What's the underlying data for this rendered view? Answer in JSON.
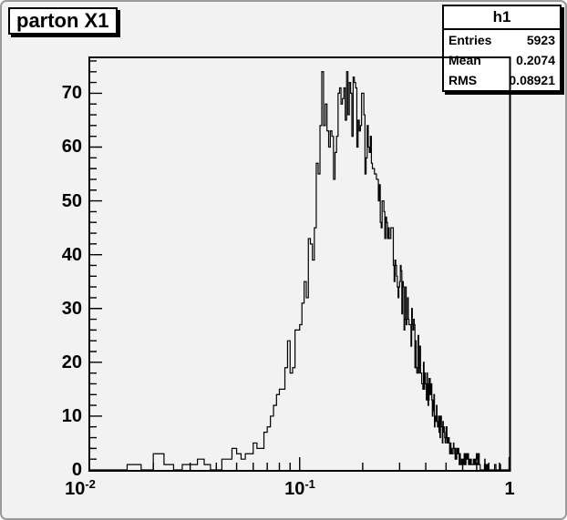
{
  "title_box": {
    "title": "parton X1"
  },
  "stats_box": {
    "header": "h1",
    "rows": [
      {
        "label": "Entries",
        "value": "5923"
      },
      {
        "label": "Mean",
        "value": "0.2074"
      },
      {
        "label": "RMS",
        "value": "0.08921"
      }
    ]
  },
  "colors": {
    "canvas_bg": "#f2f2f2",
    "frame_line": "#000000",
    "hist_line": "#000000",
    "box_bg": "#ffffff",
    "shadow": "#000000"
  },
  "chart_data": {
    "type": "histogram",
    "title": "parton X1",
    "hist_name": "h1",
    "entries": 5923,
    "mean": 0.2074,
    "rms": 0.08921,
    "x_axis": {
      "scale": "log",
      "min": 0.01,
      "max": 1,
      "major_ticks": [
        0.1,
        1
      ],
      "major_labels": [
        "10^-1",
        "1"
      ],
      "edge_label": "10^-2",
      "minor_tick_decades": [
        0.01,
        0.1
      ]
    },
    "y_axis": {
      "min": 0,
      "max": 76.5,
      "major_ticks": [
        0,
        10,
        20,
        30,
        40,
        50,
        60,
        70
      ],
      "minor_step": 2
    },
    "bins": {
      "nbins": 400,
      "xmin": 0,
      "xmax": 1
    },
    "envelope": [
      [
        0.01,
        0
      ],
      [
        0.015,
        0
      ],
      [
        0.0157,
        1
      ],
      [
        0.017,
        1
      ],
      [
        0.0176,
        0
      ],
      [
        0.0199,
        0
      ],
      [
        0.0206,
        3
      ],
      [
        0.0219,
        3
      ],
      [
        0.0226,
        2
      ],
      [
        0.0247,
        2
      ],
      [
        0.0253,
        0
      ],
      [
        0.0277,
        0
      ],
      [
        0.0283,
        1
      ],
      [
        0.0334,
        1
      ],
      [
        0.0341,
        2
      ],
      [
        0.0371,
        2
      ],
      [
        0.0378,
        1
      ],
      [
        0.0411,
        1
      ],
      [
        0.0419,
        2
      ],
      [
        0.0469,
        2
      ],
      [
        0.0478,
        3
      ],
      [
        0.0521,
        3
      ],
      [
        0.0531,
        2
      ],
      [
        0.0575,
        3
      ],
      [
        0.064,
        4
      ],
      [
        0.069,
        6
      ],
      [
        0.071,
        8
      ],
      [
        0.075,
        11
      ],
      [
        0.078,
        14
      ],
      [
        0.08,
        13
      ],
      [
        0.084,
        16
      ],
      [
        0.088,
        20
      ],
      [
        0.092,
        19
      ],
      [
        0.096,
        24
      ],
      [
        0.101,
        30
      ],
      [
        0.106,
        33
      ],
      [
        0.111,
        38
      ],
      [
        0.117,
        45
      ],
      [
        0.123,
        55
      ],
      [
        0.127,
        68
      ],
      [
        0.129,
        73
      ],
      [
        0.131,
        62
      ],
      [
        0.134,
        64
      ],
      [
        0.139,
        58
      ],
      [
        0.144,
        66
      ],
      [
        0.148,
        50
      ],
      [
        0.152,
        67
      ],
      [
        0.157,
        70
      ],
      [
        0.162,
        63
      ],
      [
        0.168,
        68
      ],
      [
        0.172,
        71
      ],
      [
        0.176,
        64
      ],
      [
        0.182,
        67
      ],
      [
        0.187,
        66
      ],
      [
        0.193,
        64
      ],
      [
        0.199,
        66
      ],
      [
        0.205,
        60
      ],
      [
        0.212,
        63
      ],
      [
        0.22,
        58
      ],
      [
        0.228,
        55
      ],
      [
        0.235,
        50
      ],
      [
        0.243,
        48
      ],
      [
        0.252,
        46
      ],
      [
        0.261,
        44
      ],
      [
        0.27,
        42
      ],
      [
        0.28,
        40
      ],
      [
        0.29,
        37
      ],
      [
        0.3,
        34
      ],
      [
        0.311,
        32
      ],
      [
        0.322,
        30
      ],
      [
        0.334,
        28
      ],
      [
        0.346,
        25
      ],
      [
        0.358,
        23
      ],
      [
        0.371,
        21
      ],
      [
        0.384,
        19
      ],
      [
        0.398,
        17
      ],
      [
        0.412,
        15
      ],
      [
        0.427,
        13
      ],
      [
        0.442,
        11
      ],
      [
        0.458,
        9
      ],
      [
        0.475,
        8
      ],
      [
        0.492,
        7
      ],
      [
        0.51,
        5
      ],
      [
        0.528,
        4
      ],
      [
        0.547,
        3
      ],
      [
        0.567,
        3
      ],
      [
        0.587,
        2
      ],
      [
        0.608,
        2
      ],
      [
        0.63,
        2
      ],
      [
        0.653,
        1
      ],
      [
        0.676,
        1
      ],
      [
        0.7,
        2
      ],
      [
        0.72,
        2
      ],
      [
        0.731,
        0
      ],
      [
        0.76,
        0
      ],
      [
        0.765,
        1
      ],
      [
        0.776,
        0
      ],
      [
        0.785,
        1
      ],
      [
        0.796,
        0
      ],
      [
        0.852,
        0
      ],
      [
        0.857,
        1
      ],
      [
        0.868,
        0
      ],
      [
        0.898,
        0
      ],
      [
        0.903,
        1
      ],
      [
        0.914,
        0
      ],
      [
        1.0,
        0
      ]
    ],
    "noise": {
      "seed": 20740892,
      "amplitude": 0.85
    }
  }
}
